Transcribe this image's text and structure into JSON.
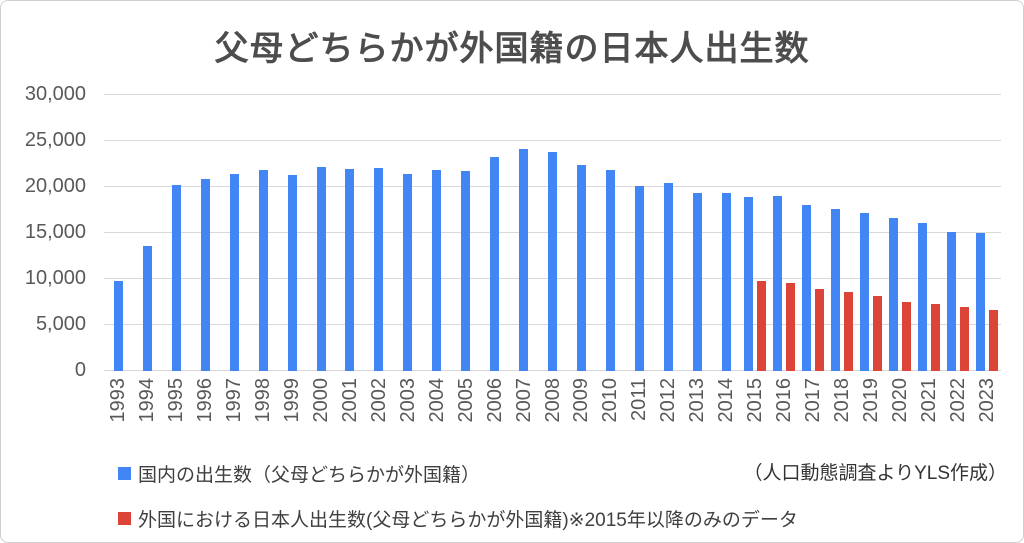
{
  "title": "父母どちらかが外国籍の日本人出生数",
  "source_note": "（人口動態調査よりYLS作成）",
  "legend": {
    "domestic_label": "国内の出生数（父母どちらかが外国籍）",
    "overseas_label": "外国における日本人出生数(父母どちらかが外国籍)※2015年以降のみのデータ"
  },
  "colors": {
    "domestic": "#4285F4",
    "overseas": "#DB4437",
    "gridline": "#d9d9d9",
    "axis_text": "#595959",
    "title_text": "#4d4d4d"
  },
  "chart_data": {
    "type": "bar",
    "title": "父母どちらかが外国籍の日本人出生数",
    "categories": [
      "1993",
      "1994",
      "1995",
      "1996",
      "1997",
      "1998",
      "1999",
      "2000",
      "2001",
      "2002",
      "2003",
      "2004",
      "2005",
      "2006",
      "2007",
      "2008",
      "2009",
      "2010",
      "2011",
      "2012",
      "2013",
      "2014",
      "2015",
      "2016",
      "2017",
      "2018",
      "2019",
      "2020",
      "2021",
      "2022",
      "2023"
    ],
    "series": [
      {
        "key": "domestic",
        "name": "国内の出生数（父母どちらかが外国籍）",
        "color": "#4285F4",
        "values": [
          9800,
          13600,
          20200,
          20900,
          21400,
          21900,
          21300,
          22200,
          22000,
          22100,
          21400,
          21900,
          21700,
          23300,
          24100,
          23800,
          22400,
          21900,
          20100,
          20400,
          19300,
          19400,
          18900,
          19000,
          18000,
          17600,
          17200,
          16600,
          16100,
          15100,
          15000
        ]
      },
      {
        "key": "overseas",
        "name": "外国における日本人出生数(父母どちらかが外国籍)※2015年以降のみのデータ",
        "color": "#DB4437",
        "values": [
          null,
          null,
          null,
          null,
          null,
          null,
          null,
          null,
          null,
          null,
          null,
          null,
          null,
          null,
          null,
          null,
          null,
          null,
          null,
          null,
          null,
          null,
          9800,
          9600,
          8900,
          8600,
          8200,
          7500,
          7300,
          7000,
          6600
        ]
      }
    ],
    "ylim": [
      0,
      30000
    ],
    "y_ticks": [
      {
        "value": 0,
        "label": "0"
      },
      {
        "value": 5000,
        "label": "5,000"
      },
      {
        "value": 10000,
        "label": "10,000"
      },
      {
        "value": 15000,
        "label": "15,000"
      },
      {
        "value": 20000,
        "label": "20,000"
      },
      {
        "value": 25000,
        "label": "25,000"
      },
      {
        "value": 30000,
        "label": "30,000"
      }
    ],
    "grid": true,
    "legend_position": "bottom-left",
    "source_note": "（人口動態調査よりYLS作成）"
  }
}
